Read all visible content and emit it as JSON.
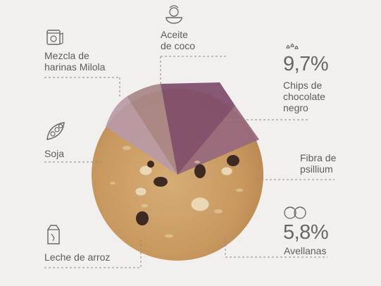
{
  "ingredients": {
    "harinas": "Mezcla de\nharinas Milola",
    "aceite": "Aceite\nde coco",
    "soja": "Soja",
    "leche": "Leche de arroz",
    "chips_pct": "9,7%",
    "chips_label": "Chips de\nchocolate\nnegro",
    "fibra": "Fibra de\npsillium",
    "avellanas_pct": "5,8%",
    "avellanas_label": "Avellanas"
  },
  "icons": {
    "harinas": "flour-bag-icon",
    "aceite": "coconut-icon",
    "soja": "soy-pod-icon",
    "leche": "milk-carton-icon",
    "chips": "chocolate-chips-icon",
    "avellanas": "hazelnut-icon"
  },
  "colors": {
    "background": "#f2f0ee",
    "cookie": "#c79a63",
    "slice_light_mauve": "#b99aa6",
    "slice_brown_mauve": "#a17f7f",
    "slice_purple": "#7e4f6b",
    "slice_mauve": "#966a7f"
  }
}
